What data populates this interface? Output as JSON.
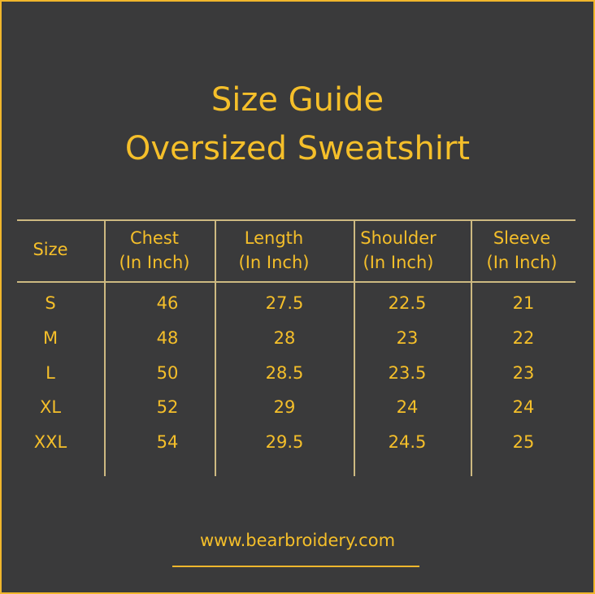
{
  "title_line1": "Size Guide",
  "title_line2": "Oversized Sweatshirt",
  "headers": [
    [
      "Size"
    ],
    [
      "Chest",
      "(In Inch)"
    ],
    [
      "Length",
      "(In Inch)"
    ],
    [
      "Shoulder",
      "(In Inch)"
    ],
    [
      "Sleeve",
      "(In Inch)"
    ]
  ],
  "rows": [
    [
      "S",
      "46",
      "27.5",
      "22.5",
      "21"
    ],
    [
      "M",
      "48",
      "28",
      "23",
      "22"
    ],
    [
      "L",
      "50",
      "28.5",
      "23.5",
      "23"
    ],
    [
      "XL",
      "52",
      "29",
      "24",
      "24"
    ],
    [
      "XXL",
      "54",
      "29.5",
      "24.5",
      "25"
    ]
  ],
  "footer": "www.bearbroidery.com",
  "colors": {
    "background": "#3a3a3b",
    "accent": "#f5bf2a",
    "rule": "#cdb981"
  }
}
